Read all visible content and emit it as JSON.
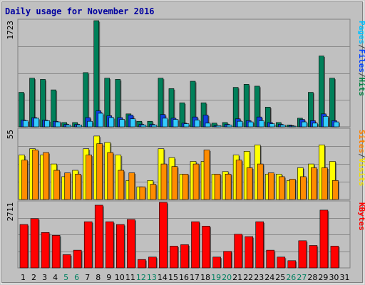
{
  "chart_data": {
    "type": "bar",
    "title": "Daily usage for November 2016",
    "categories": [
      "1",
      "2",
      "3",
      "4",
      "5",
      "6",
      "7",
      "8",
      "9",
      "10",
      "11",
      "12",
      "13",
      "14",
      "15",
      "16",
      "17",
      "18",
      "19",
      "20",
      "21",
      "22",
      "23",
      "24",
      "25",
      "26",
      "27",
      "28",
      "29",
      "30",
      "31"
    ],
    "weekend_days": [
      "5",
      "6",
      "12",
      "13",
      "19",
      "20",
      "26",
      "27"
    ],
    "panels": [
      {
        "name": "hits_files_pages",
        "ymax": 1723,
        "ymax_label": "1723",
        "legend": [
          "Pages",
          "/",
          "Files",
          "/",
          "Hits"
        ],
        "legend_colors": [
          "#00c0ff",
          "#404040",
          "#0040ff",
          "#404040",
          "#008040"
        ],
        "series": [
          {
            "name": "Hits",
            "color": "#00805a",
            "values": [
              560,
              790,
              770,
              600,
              70,
              70,
              880,
              1723,
              790,
              770,
              210,
              90,
              90,
              790,
              620,
              390,
              740,
              390,
              60,
              70,
              640,
              690,
              660,
              320,
              70,
              30,
              140,
              560,
              1150,
              790,
              0
            ]
          },
          {
            "name": "Files",
            "color": "#1040e0",
            "values": [
              110,
              150,
              110,
              90,
              40,
              40,
              150,
              260,
              180,
              150,
              190,
              40,
              40,
              200,
              140,
              60,
              160,
              190,
              20,
              40,
              130,
              100,
              160,
              70,
              40,
              20,
              120,
              100,
              210,
              100,
              0
            ]
          },
          {
            "name": "Pages",
            "color": "#33ccff",
            "values": [
              100,
              140,
              100,
              80,
              30,
              30,
              90,
              220,
              150,
              120,
              130,
              30,
              30,
              140,
              120,
              50,
              110,
              60,
              20,
              30,
              90,
              80,
              100,
              50,
              30,
              10,
              80,
              60,
              170,
              80,
              0
            ]
          }
        ]
      },
      {
        "name": "visits_sites",
        "ymax": 55,
        "ymax_label": "55",
        "legend": [
          "Sites",
          "/",
          "Visits"
        ],
        "legend_colors": [
          "#ff8000",
          "#404040",
          "#f0e000"
        ],
        "series": [
          {
            "name": "Visits",
            "color": "#ffff00",
            "values": [
              35,
              40,
              35,
              28,
              18,
              23,
              40,
              50,
              45,
              35,
              15,
              10,
              15,
              40,
              33,
              20,
              30,
              30,
              20,
              22,
              35,
              38,
              43,
              20,
              20,
              15,
              25,
              28,
              43,
              30,
              0
            ]
          },
          {
            "name": "Sites",
            "color": "#ff8c00",
            "values": [
              31,
              39,
              37,
              23,
              21,
              20,
              35,
              44,
              37,
              23,
              21,
              10,
              12,
              28,
              26,
              20,
              28,
              39,
              20,
              20,
              31,
              25,
              28,
              21,
              18,
              16,
              18,
              25,
              25,
              15,
              0
            ]
          }
        ]
      },
      {
        "name": "kbytes",
        "ymax": 2711,
        "ymax_label": "2711",
        "legend": [
          "KBytes"
        ],
        "legend_colors": [
          "#ff0000"
        ],
        "series": [
          {
            "name": "KBytes",
            "color": "#ff0000",
            "values": [
              1795,
              2039,
              1465,
              1345,
              548,
              733,
              1910,
              2594,
              1910,
              1795,
              2003,
              348,
              448,
              2711,
              900,
              960,
              1910,
              1726,
              448,
              685,
              1395,
              1295,
              1910,
              733,
              448,
              300,
              1124,
              928,
              2390,
              900,
              0
            ]
          }
        ]
      }
    ]
  }
}
